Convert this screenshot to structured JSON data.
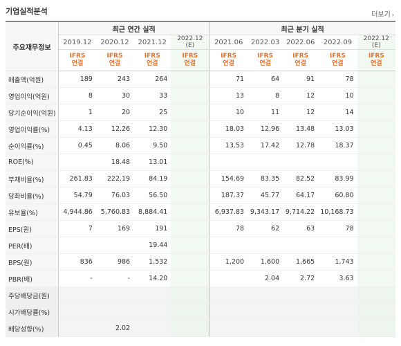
{
  "header": {
    "title": "기업실적분석",
    "more": "더보기"
  },
  "table": {
    "corner_label": "주요재무정보",
    "group_annual": "최근 연간 실적",
    "group_quarter": "최근 분기 실적",
    "periods": [
      {
        "label": "2019.12",
        "sub": "",
        "est": false,
        "ifrs": "IFRS",
        "basis": "연결"
      },
      {
        "label": "2020.12",
        "sub": "",
        "est": false,
        "ifrs": "IFRS",
        "basis": "연결"
      },
      {
        "label": "2021.12",
        "sub": "",
        "est": false,
        "ifrs": "IFRS",
        "basis": "연결"
      },
      {
        "label": "2022.12",
        "sub": "(E)",
        "est": true,
        "ifrs": "IFRS",
        "basis": "연결"
      },
      {
        "label": "2021.06",
        "sub": "",
        "est": false,
        "ifrs": "IFRS",
        "basis": "연결"
      },
      {
        "label": "2022.03",
        "sub": "",
        "est": false,
        "ifrs": "IFRS",
        "basis": "연결"
      },
      {
        "label": "2022.06",
        "sub": "",
        "est": false,
        "ifrs": "IFRS",
        "basis": "연결"
      },
      {
        "label": "2022.09",
        "sub": "",
        "est": false,
        "ifrs": "IFRS",
        "basis": "연결"
      },
      {
        "label": "2022.12",
        "sub": "(E)",
        "est": true,
        "ifrs": "IFRS",
        "basis": "연결"
      }
    ],
    "rows": [
      {
        "label": "매출액(억원)",
        "values": [
          "189",
          "243",
          "264",
          "",
          "71",
          "64",
          "91",
          "78",
          ""
        ]
      },
      {
        "label": "영업이익(억원)",
        "values": [
          "8",
          "30",
          "33",
          "",
          "13",
          "8",
          "12",
          "10",
          ""
        ]
      },
      {
        "label": "당기순이익(억원)",
        "values": [
          "1",
          "20",
          "25",
          "",
          "10",
          "11",
          "12",
          "14",
          ""
        ]
      },
      {
        "label": "영업이익률(%)",
        "values": [
          "4.13",
          "12.26",
          "12.30",
          "",
          "18.03",
          "12.96",
          "13.48",
          "13.03",
          ""
        ]
      },
      {
        "label": "순이익률(%)",
        "values": [
          "0.45",
          "8.06",
          "9.50",
          "",
          "13.53",
          "17.42",
          "12.78",
          "18.37",
          ""
        ]
      },
      {
        "label": "ROE(%)",
        "values": [
          "",
          "18.48",
          "13.01",
          "",
          "",
          "",
          "",
          "",
          ""
        ]
      },
      {
        "label": "부채비율(%)",
        "values": [
          "261.83",
          "222.19",
          "84.19",
          "",
          "154.69",
          "83.35",
          "82.52",
          "83.99",
          ""
        ]
      },
      {
        "label": "당좌비율(%)",
        "values": [
          "54.79",
          "76.03",
          "56.50",
          "",
          "187.37",
          "45.77",
          "64.17",
          "60.80",
          ""
        ]
      },
      {
        "label": "유보율(%)",
        "values": [
          "4,944.86",
          "5,760.83",
          "8,884.41",
          "",
          "6,937.83",
          "9,343.17",
          "9,714.22",
          "10,168.73",
          ""
        ]
      },
      {
        "label": "EPS(원)",
        "values": [
          "7",
          "169",
          "191",
          "",
          "78",
          "62",
          "63",
          "78",
          ""
        ]
      },
      {
        "label": "PER(배)",
        "values": [
          "",
          "",
          "19.44",
          "",
          "",
          "",
          "",
          "",
          ""
        ]
      },
      {
        "label": "BPS(원)",
        "values": [
          "836",
          "986",
          "1,532",
          "",
          "1,200",
          "1,600",
          "1,665",
          "1,743",
          ""
        ]
      },
      {
        "label": "PBR(배)",
        "values": [
          "-",
          "-",
          "14.20",
          "",
          "",
          "2.04",
          "2.72",
          "3.63",
          ""
        ]
      },
      {
        "label": "주당배당금(원)",
        "values": [
          "",
          "",
          "",
          "",
          "",
          "",
          "",
          "",
          ""
        ]
      },
      {
        "label": "시가배당률(%)",
        "values": [
          "",
          "",
          "",
          "",
          "",
          "",
          "",
          "",
          ""
        ]
      },
      {
        "label": "배당성향(%)",
        "values": [
          "",
          "2.02",
          "",
          "",
          "",
          "",
          "",
          "",
          ""
        ]
      }
    ]
  },
  "colors": {
    "accent_ifrs": "#e8712a",
    "estimate_bg": "#f2f8f2"
  }
}
